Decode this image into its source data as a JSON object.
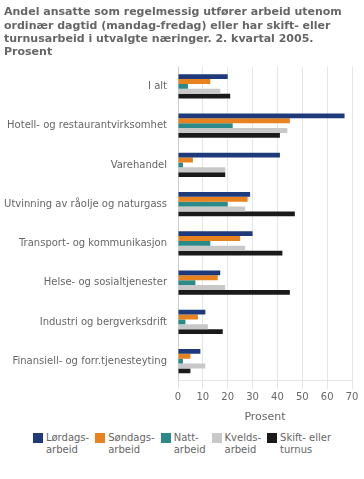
{
  "chart_data": {
    "type": "bar",
    "orientation": "horizontal",
    "title": "Andel ansatte som regelmessig utfører arbeid utenom\nordinær dagtid (mandag-fredag) eller har skift- eller\nturnusarbeid i utvalgte næringer. 2. kvartal 2005.\nProsent",
    "categories": [
      "Finansiell- og forr.tjenesteyting",
      "Industri og bergverksdrift",
      "Helse- og sosialtjenester",
      "Transport- og kommunikasjon",
      "Utvinning av råolje og naturgass",
      "Varehandel",
      "Hotell- og restaurantvirksomhet",
      "I alt"
    ],
    "series": [
      {
        "name": "Lørdags-\narbeid",
        "color": "#1f3a7a",
        "values": [
          9,
          11,
          17,
          30,
          29,
          41,
          67,
          20
        ]
      },
      {
        "name": "Søndags-\narbeid",
        "color": "#e8821e",
        "values": [
          5,
          8,
          16,
          25,
          28,
          6,
          45,
          13
        ]
      },
      {
        "name": "Natt-\narbeid",
        "color": "#2a8a8a",
        "values": [
          2,
          3,
          7,
          13,
          20,
          2,
          22,
          4
        ]
      },
      {
        "name": "Kvelds-\narbeid",
        "color": "#c8c8c8",
        "values": [
          11,
          12,
          19,
          27,
          27,
          19,
          44,
          17
        ]
      },
      {
        "name": "Skift- eller\nturnus",
        "color": "#1a1a1a",
        "values": [
          5,
          18,
          45,
          42,
          47,
          19,
          41,
          21
        ]
      }
    ],
    "xlim": [
      0,
      70
    ],
    "xticks": [
      0,
      10,
      20,
      30,
      40,
      50,
      60,
      70
    ],
    "xlabel": "Prosent",
    "grid": true,
    "legend": "bottom"
  }
}
